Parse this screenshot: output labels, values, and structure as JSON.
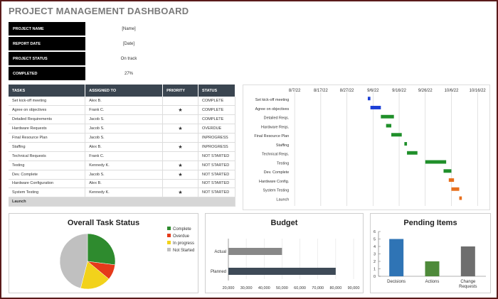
{
  "title": "PROJECT MANAGEMENT DASHBOARD",
  "info": [
    {
      "label": "PROJECT NAME",
      "value": "[Name]"
    },
    {
      "label": "REPORT DATE",
      "value": "[Date]"
    },
    {
      "label": "PROJECT STATUS",
      "value": "On track"
    },
    {
      "label": "COMPLETED",
      "value": "27%"
    }
  ],
  "tasks_table": {
    "headers": [
      "TASKS",
      "ASSIGNED TO",
      "PRIORITY",
      "STATUS"
    ],
    "rows": [
      {
        "task": "Set kick-off meeting",
        "assigned": "Alex B.",
        "priority": "",
        "status": "COMPLETE",
        "status_class": "s-complete"
      },
      {
        "task": "Agree on objectives",
        "assigned": "Frank C.",
        "priority": "★",
        "status": "COMPLETE",
        "status_class": "s-complete"
      },
      {
        "task": "Detailed Requirements",
        "assigned": "Jacob S.",
        "priority": "",
        "status": "COMPLETE",
        "status_class": "s-complete"
      },
      {
        "task": "Hardware Requests",
        "assigned": "Jacob S.",
        "priority": "★",
        "status": "OVERDUE",
        "status_class": "s-overdue"
      },
      {
        "task": "Final Resource Plan",
        "assigned": "Jacob S.",
        "priority": "",
        "status": "INPROGRESS",
        "status_class": "s-inprogress"
      },
      {
        "task": "Staffing",
        "assigned": "Alex B.",
        "priority": "★",
        "status": "INPROGRESS",
        "status_class": "s-inprogress"
      },
      {
        "task": "Technical Requests",
        "assigned": "Frank C.",
        "priority": "",
        "status": "NOT STARTED",
        "status_class": "s-notstarted"
      },
      {
        "task": "Testing",
        "assigned": "Kennedy K.",
        "priority": "★",
        "status": "NOT STARTED",
        "status_class": "s-notstarted"
      },
      {
        "task": "Dev. Complete",
        "assigned": "Jacob S.",
        "priority": "★",
        "status": "NOT STARTED",
        "status_class": "s-notstarted"
      },
      {
        "task": "Hardware Configuration",
        "assigned": "Alex B.",
        "priority": "",
        "status": "NOT STARTED",
        "status_class": "s-notstarted"
      },
      {
        "task": "System Testing",
        "assigned": "Kennedy K.",
        "priority": "★",
        "status": "NOT STARTED",
        "status_class": "s-notstarted"
      }
    ],
    "footer": "Launch"
  },
  "colors": {
    "complete": "#2e8b2e",
    "overdue": "#e53a1a",
    "inprogress": "#f2d21b",
    "notstarted": "#c0c0c0",
    "gantt_blue": "#1c3fd6",
    "gantt_green": "#1f8f2a",
    "gantt_orange": "#e8701e",
    "bar_dark": "#3e4a57",
    "bar_grey": "#888888",
    "bar_blue": "#2f74b5",
    "bar_green": "#4e8a3a",
    "bar_darkgrey": "#6e6e6e"
  },
  "chart_data": [
    {
      "type": "bar",
      "orientation": "horizontal-gantt",
      "x_ticks": [
        "8/7/22",
        "8/17/22",
        "8/27/22",
        "9/6/22",
        "9/16/22",
        "9/26/22",
        "10/6/22",
        "10/16/22"
      ],
      "categories": [
        "Set kick-off meeting",
        "Agree on objectives",
        "Detailed Reqs.",
        "Hardware Reqs.",
        "Final Resource Plan",
        "Staffing",
        "Technical Reqs.",
        "Testing",
        "Dev. Complete",
        "Hardware Config.",
        "System Testing",
        "Launch"
      ],
      "series": [
        {
          "start": "2022-09-04",
          "end": "2022-09-05",
          "color": "blue"
        },
        {
          "start": "2022-09-05",
          "end": "2022-09-09",
          "color": "blue"
        },
        {
          "start": "2022-09-09",
          "end": "2022-09-14",
          "color": "green"
        },
        {
          "start": "2022-09-11",
          "end": "2022-09-13",
          "color": "green"
        },
        {
          "start": "2022-09-13",
          "end": "2022-09-17",
          "color": "green"
        },
        {
          "start": "2022-09-18",
          "end": "2022-09-19",
          "color": "green"
        },
        {
          "start": "2022-09-19",
          "end": "2022-09-23",
          "color": "green"
        },
        {
          "start": "2022-09-26",
          "end": "2022-10-04",
          "color": "green"
        },
        {
          "start": "2022-10-03",
          "end": "2022-10-06",
          "color": "green"
        },
        {
          "start": "2022-10-05",
          "end": "2022-10-07",
          "color": "orange"
        },
        {
          "start": "2022-10-06",
          "end": "2022-10-09",
          "color": "orange"
        },
        {
          "start": "2022-10-09",
          "end": "2022-10-10",
          "color": "orange"
        }
      ]
    },
    {
      "type": "pie",
      "title": "Overall Task Status",
      "labels": [
        "Complete",
        "Overdue",
        "In progress",
        "Not Started"
      ],
      "values": [
        27,
        9,
        18,
        46
      ]
    },
    {
      "type": "bar",
      "orientation": "horizontal",
      "title": "Budget",
      "categories": [
        "Actual",
        "Planned"
      ],
      "values": [
        50000,
        80000
      ],
      "x_ticks": [
        "20,000",
        "30,000",
        "40,000",
        "50,000",
        "60,000",
        "70,000",
        "80,000",
        "90,000"
      ],
      "xlim": [
        20000,
        90000
      ]
    },
    {
      "type": "bar",
      "title": "Pending Items",
      "categories": [
        "Decisions",
        "Actions",
        "Change Requests"
      ],
      "values": [
        5,
        2,
        4
      ],
      "ylim": [
        0,
        6
      ],
      "y_ticks": [
        "0",
        "1",
        "2",
        "3",
        "4",
        "5",
        "6"
      ]
    }
  ]
}
